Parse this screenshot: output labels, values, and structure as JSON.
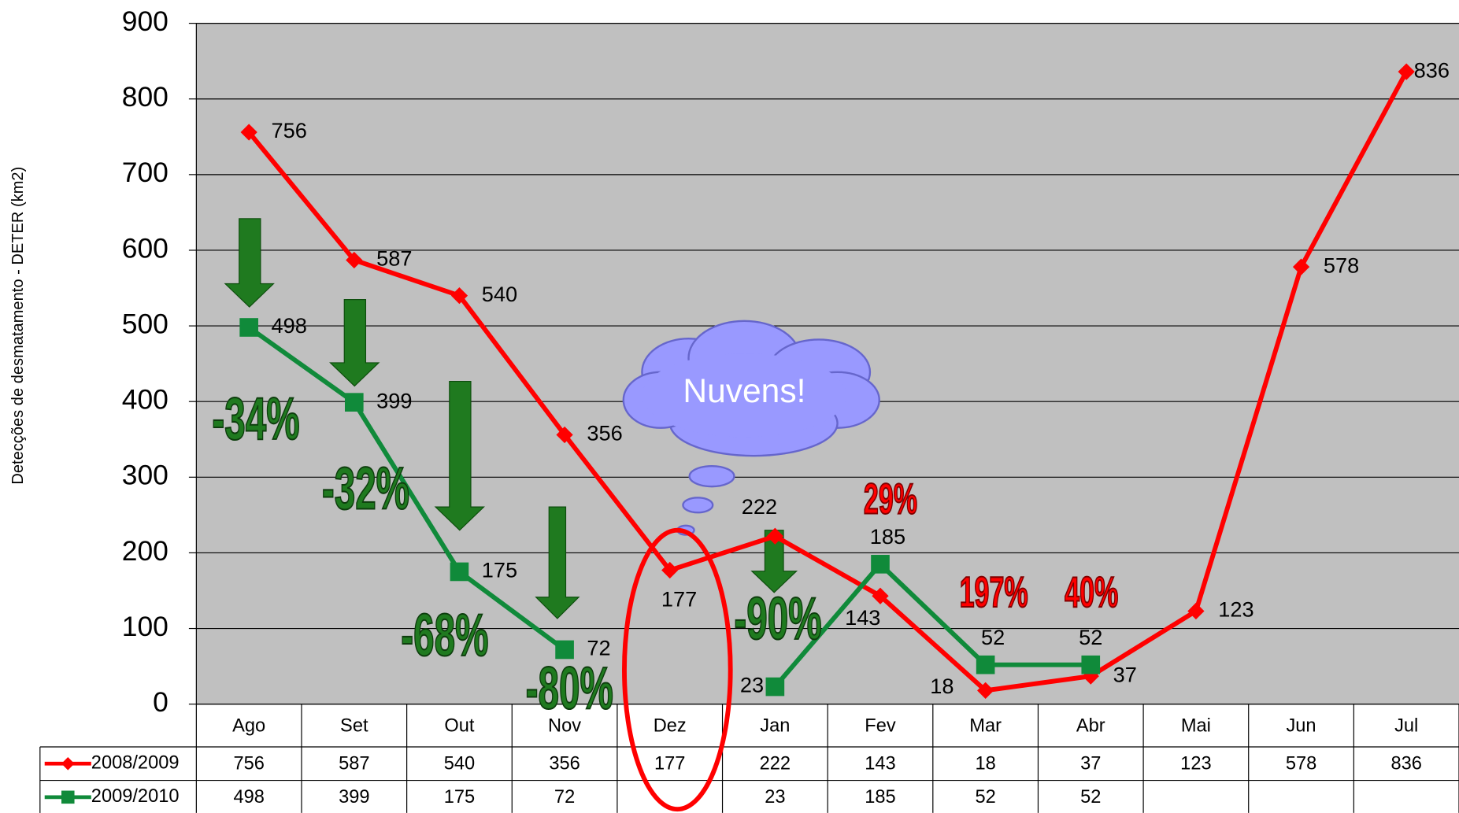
{
  "chart_data": {
    "type": "line",
    "y_label": "Detecções de desmatamento - DETER (km2)",
    "categories": [
      "Ago",
      "Set",
      "Out",
      "Nov",
      "Dez",
      "Jan",
      "Fev",
      "Mar",
      "Abr",
      "Mai",
      "Jun",
      "Jul"
    ],
    "series": [
      {
        "name": "2008/2009",
        "color": "#ff0000",
        "values": [
          756,
          587,
          540,
          356,
          177,
          222,
          143,
          18,
          37,
          123,
          578,
          836
        ]
      },
      {
        "name": "2009/2010",
        "color": "#108a3a",
        "values": [
          498,
          399,
          175,
          72,
          null,
          23,
          185,
          52,
          52,
          null,
          null,
          null
        ]
      }
    ],
    "ylim": [
      0,
      900
    ],
    "yticks": [
      0,
      100,
      200,
      300,
      400,
      500,
      600,
      700,
      800,
      900
    ],
    "grid": true,
    "annotations": [
      "-34%",
      "-32%",
      "-68%",
      "-80%",
      "-90%",
      "29%",
      "197%",
      "40%"
    ],
    "callout": "Nuvens!"
  }
}
